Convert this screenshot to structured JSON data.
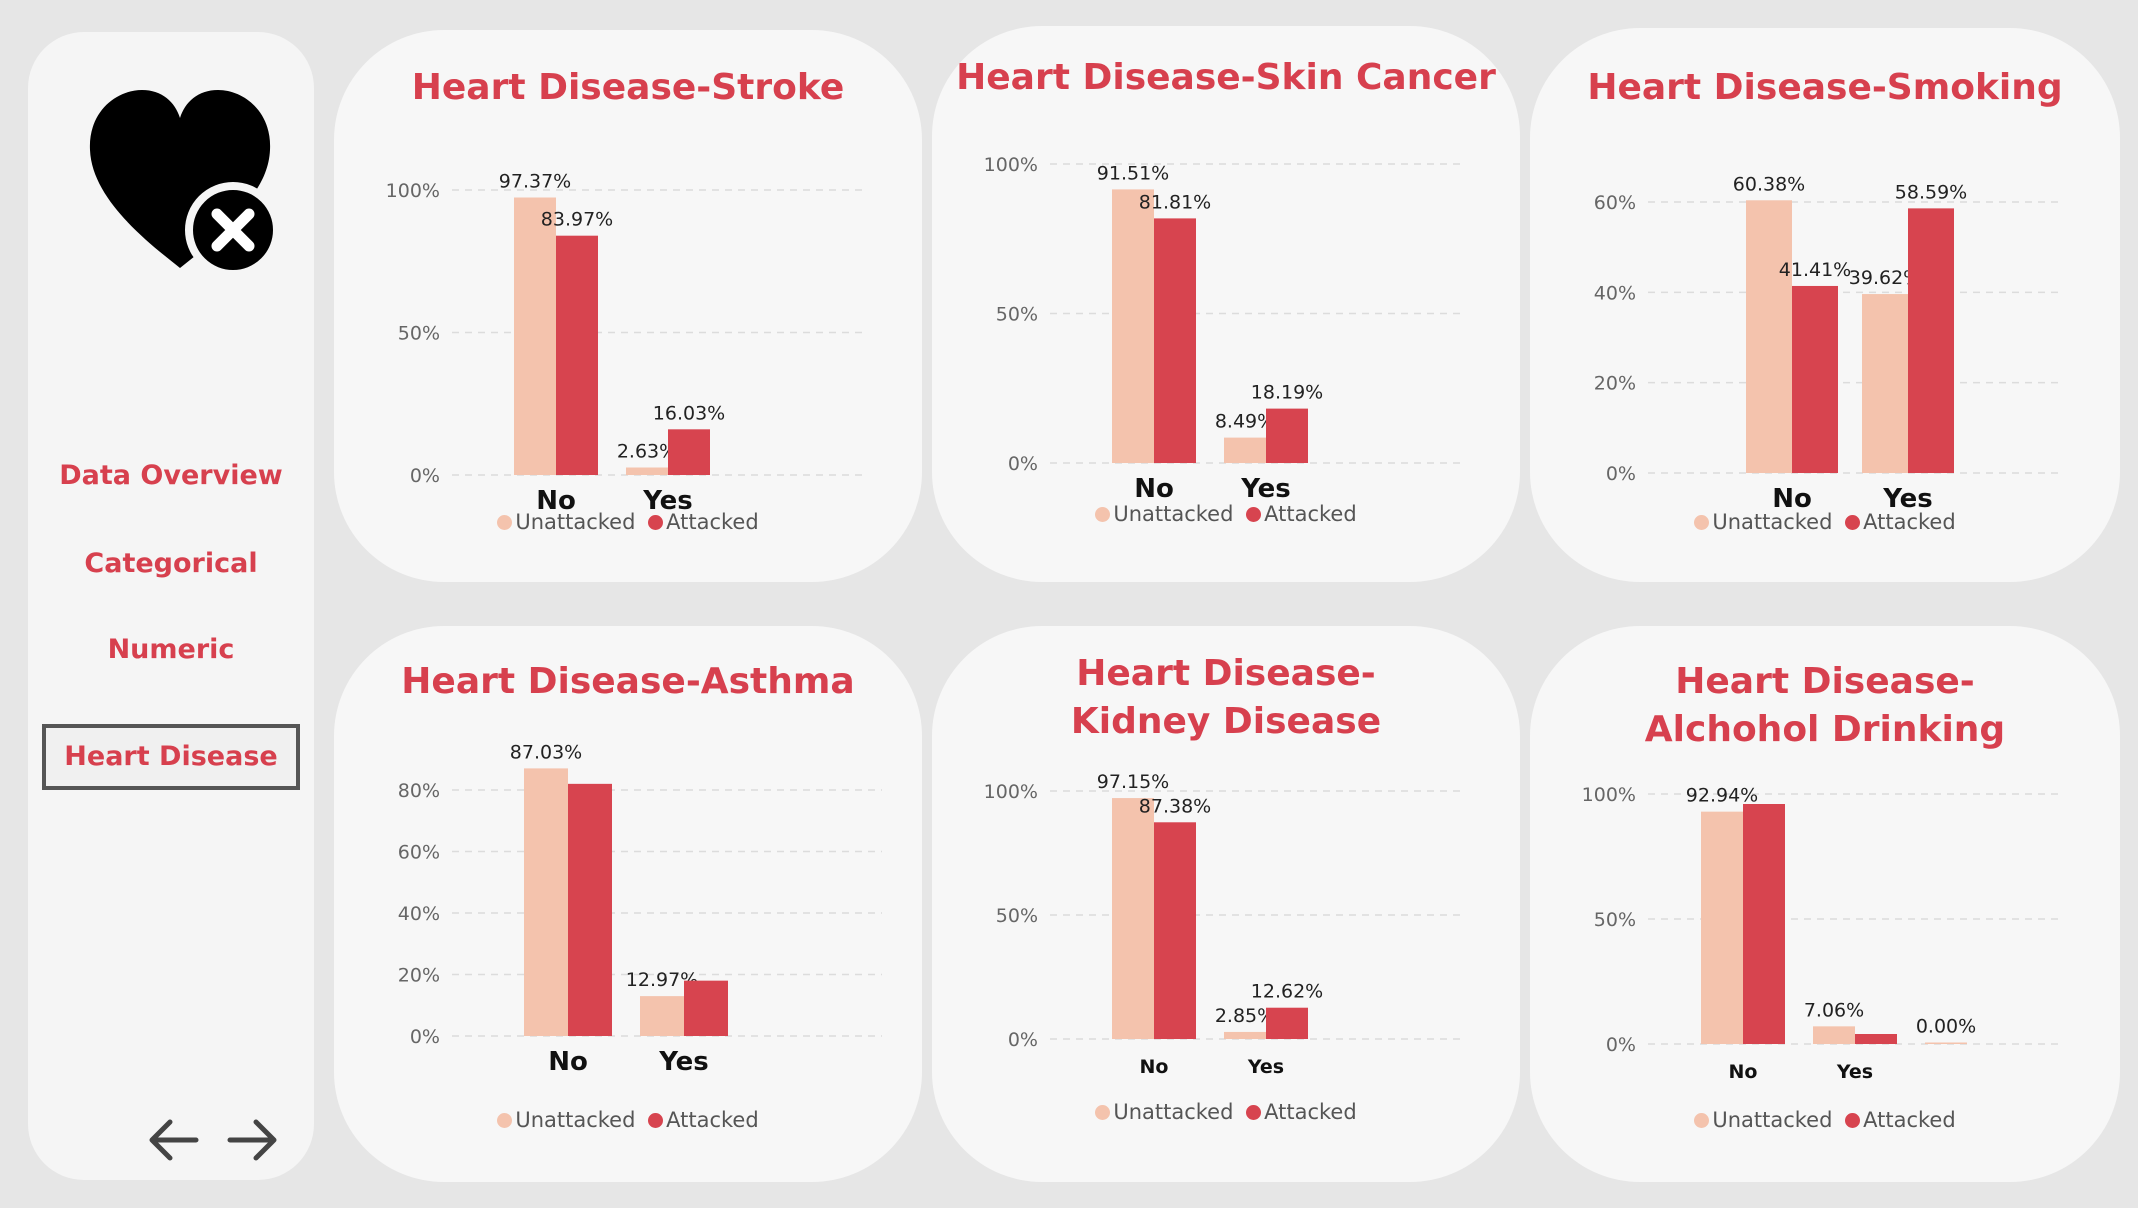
{
  "colors": {
    "accent": "#d7404e",
    "unattacked": "#f4c3ad",
    "attacked": "#d7444f",
    "card_bg": "#f7f7f7",
    "page_bg": "#e6e6e6"
  },
  "sidebar": {
    "logo_icon": "heart-x-icon",
    "nav": [
      {
        "label": "Data Overview",
        "active": false
      },
      {
        "label": "Categorical",
        "active": false
      },
      {
        "label": "Numeric",
        "active": false
      },
      {
        "label": "Heart Disease",
        "active": true
      }
    ],
    "back_icon": "arrow-left-icon",
    "forward_icon": "arrow-right-icon"
  },
  "legend": {
    "unattacked": "Unattacked",
    "attacked": "Attacked"
  },
  "charts": [
    {
      "title": "Heart Disease-Stroke",
      "chart_data": {
        "type": "bar",
        "categories": [
          "No",
          "Yes"
        ],
        "series": [
          {
            "name": "Unattacked",
            "values": [
              97.37,
              2.63
            ]
          },
          {
            "name": "Attacked",
            "values": [
              83.97,
              16.03
            ]
          }
        ],
        "value_labels": [
          [
            "97.37%",
            "2.63%"
          ],
          [
            "83.97%",
            "16.03%"
          ]
        ],
        "yticks": [
          "0%",
          "50%",
          "100%"
        ],
        "ylim": [
          0,
          100
        ],
        "grid": true,
        "legend": "bottom-center"
      }
    },
    {
      "title": "Heart Disease-Skin Cancer",
      "chart_data": {
        "type": "bar",
        "categories": [
          "No",
          "Yes"
        ],
        "series": [
          {
            "name": "Unattacked",
            "values": [
              91.51,
              8.49
            ]
          },
          {
            "name": "Attacked",
            "values": [
              81.81,
              18.19
            ]
          }
        ],
        "value_labels": [
          [
            "91.51%",
            "8.49%"
          ],
          [
            "81.81%",
            "18.19%"
          ]
        ],
        "yticks": [
          "0%",
          "50%",
          "100%"
        ],
        "ylim": [
          0,
          100
        ],
        "grid": true,
        "legend": "bottom-center"
      }
    },
    {
      "title": "Heart Disease-Smoking",
      "chart_data": {
        "type": "bar",
        "categories": [
          "No",
          "Yes"
        ],
        "series": [
          {
            "name": "Unattacked",
            "values": [
              60.38,
              39.62
            ]
          },
          {
            "name": "Attacked",
            "values": [
              41.41,
              58.59
            ]
          }
        ],
        "value_labels": [
          [
            "60.38%",
            "39.62%"
          ],
          [
            "41.41%",
            "58.59%"
          ]
        ],
        "yticks": [
          "0%",
          "20%",
          "40%",
          "60%"
        ],
        "ylim": [
          0,
          60
        ],
        "grid": true,
        "legend": "bottom-center"
      }
    },
    {
      "title": "Heart Disease-Asthma",
      "chart_data": {
        "type": "bar",
        "categories": [
          "No",
          "Yes"
        ],
        "series": [
          {
            "name": "Unattacked",
            "values": [
              87.03,
              12.97
            ]
          },
          {
            "name": "Attacked",
            "values": [
              82,
              18
            ]
          }
        ],
        "value_labels": [
          [
            "87.03%",
            "12.97%"
          ],
          [
            "",
            ""
          ]
        ],
        "yticks": [
          "0%",
          "20%",
          "40%",
          "60%",
          "80%"
        ],
        "ylim": [
          0,
          80
        ],
        "grid": true,
        "legend": "bottom-center"
      }
    },
    {
      "title": "Heart Disease-Kidney Disease",
      "chart_data": {
        "type": "bar",
        "categories": [
          "No",
          "Yes"
        ],
        "series": [
          {
            "name": "Unattacked",
            "values": [
              97.15,
              2.85
            ]
          },
          {
            "name": "Attacked",
            "values": [
              87.38,
              12.62
            ]
          }
        ],
        "value_labels": [
          [
            "97.15%",
            "2.85%"
          ],
          [
            "87.38%",
            "12.62%"
          ]
        ],
        "yticks": [
          "0%",
          "50%",
          "100%"
        ],
        "ylim": [
          0,
          100
        ],
        "grid": true,
        "legend": "bottom-center"
      }
    },
    {
      "title": "Heart Disease-Alchohol Drinking",
      "chart_data": {
        "type": "bar",
        "categories": [
          "No",
          "Yes",
          ""
        ],
        "series": [
          {
            "name": "Unattacked",
            "values": [
              92.94,
              7.06,
              0
            ]
          },
          {
            "name": "Attacked",
            "values": [
              96,
              4,
              null
            ]
          }
        ],
        "value_labels": [
          [
            "92.94%",
            "7.06%",
            "0.00%"
          ],
          [
            "",
            "",
            ""
          ]
        ],
        "yticks": [
          "0%",
          "50%",
          "100%"
        ],
        "ylim": [
          0,
          100
        ],
        "grid": true,
        "legend": "bottom-center"
      }
    }
  ]
}
